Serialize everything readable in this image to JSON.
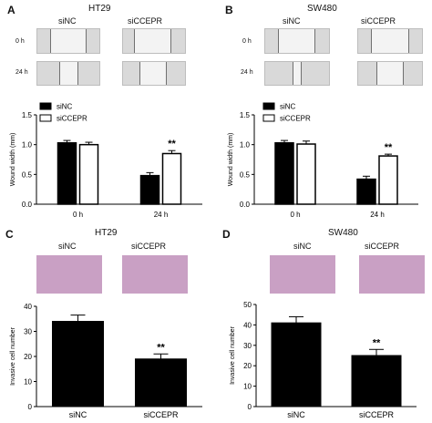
{
  "panels": {
    "A": {
      "letter": "A",
      "title": "HT29",
      "col_labels": [
        "siNC",
        "siCCEPR"
      ],
      "row_labels": [
        "0 h",
        "24 h"
      ]
    },
    "B": {
      "letter": "B",
      "title": "SW480",
      "col_labels": [
        "siNC",
        "siCCEPR"
      ],
      "row_labels": [
        "0 h",
        "24 h"
      ]
    },
    "C": {
      "letter": "C",
      "title": "HT29",
      "col_labels": [
        "siNC",
        "siCCEPR"
      ]
    },
    "D": {
      "letter": "D",
      "title": "SW480",
      "col_labels": [
        "siNC",
        "siCCEPR"
      ]
    }
  },
  "colors": {
    "siNC": "#000000",
    "siCCEPR": "#ffffff",
    "invasion_stain": "#8e3f7e"
  },
  "chart_data": [
    {
      "panel": "A",
      "type": "bar",
      "categories": [
        "0 h",
        "24 h"
      ],
      "series": [
        {
          "name": "siNC",
          "values": [
            1.03,
            0.48
          ],
          "errors": [
            0.04,
            0.05
          ]
        },
        {
          "name": "siCCEPR",
          "values": [
            1.0,
            0.85
          ],
          "errors": [
            0.04,
            0.05
          ]
        }
      ],
      "ylabel": "Wound width (mm)",
      "ylim": [
        0.0,
        1.5
      ],
      "yticks": [
        "0.0",
        "0.5",
        "1.0",
        "1.5"
      ],
      "significance": [
        {
          "category": "24 h",
          "label": "**"
        }
      ],
      "legend": "top-left"
    },
    {
      "panel": "B",
      "type": "bar",
      "categories": [
        "0 h",
        "24 h"
      ],
      "series": [
        {
          "name": "siNC",
          "values": [
            1.03,
            0.42
          ],
          "errors": [
            0.04,
            0.05
          ]
        },
        {
          "name": "siCCEPR",
          "values": [
            1.01,
            0.81
          ],
          "errors": [
            0.05,
            0.03
          ]
        }
      ],
      "ylabel": "Wound width (mm)",
      "ylim": [
        0.0,
        1.5
      ],
      "yticks": [
        "0.0",
        "0.5",
        "1.0",
        "1.5"
      ],
      "significance": [
        {
          "category": "24 h",
          "label": "**"
        }
      ],
      "legend": "top-left"
    },
    {
      "panel": "C",
      "type": "bar",
      "categories": [
        "siNC",
        "siCCEPR"
      ],
      "values": [
        34,
        19
      ],
      "errors": [
        2.5,
        2
      ],
      "ylabel": "Invasive cell number",
      "ylim": [
        0,
        40
      ],
      "yticks": [
        "0",
        "10",
        "20",
        "30",
        "40"
      ],
      "significance": [
        {
          "category": "siCCEPR",
          "label": "**"
        }
      ]
    },
    {
      "panel": "D",
      "type": "bar",
      "categories": [
        "siNC",
        "siCCEPR"
      ],
      "values": [
        41,
        25
      ],
      "errors": [
        3,
        3
      ],
      "ylabel": "Invasive cell number",
      "ylim": [
        0,
        50
      ],
      "yticks": [
        "0",
        "10",
        "20",
        "30",
        "40",
        "50"
      ],
      "significance": [
        {
          "category": "siCCEPR",
          "label": "**"
        }
      ]
    }
  ]
}
